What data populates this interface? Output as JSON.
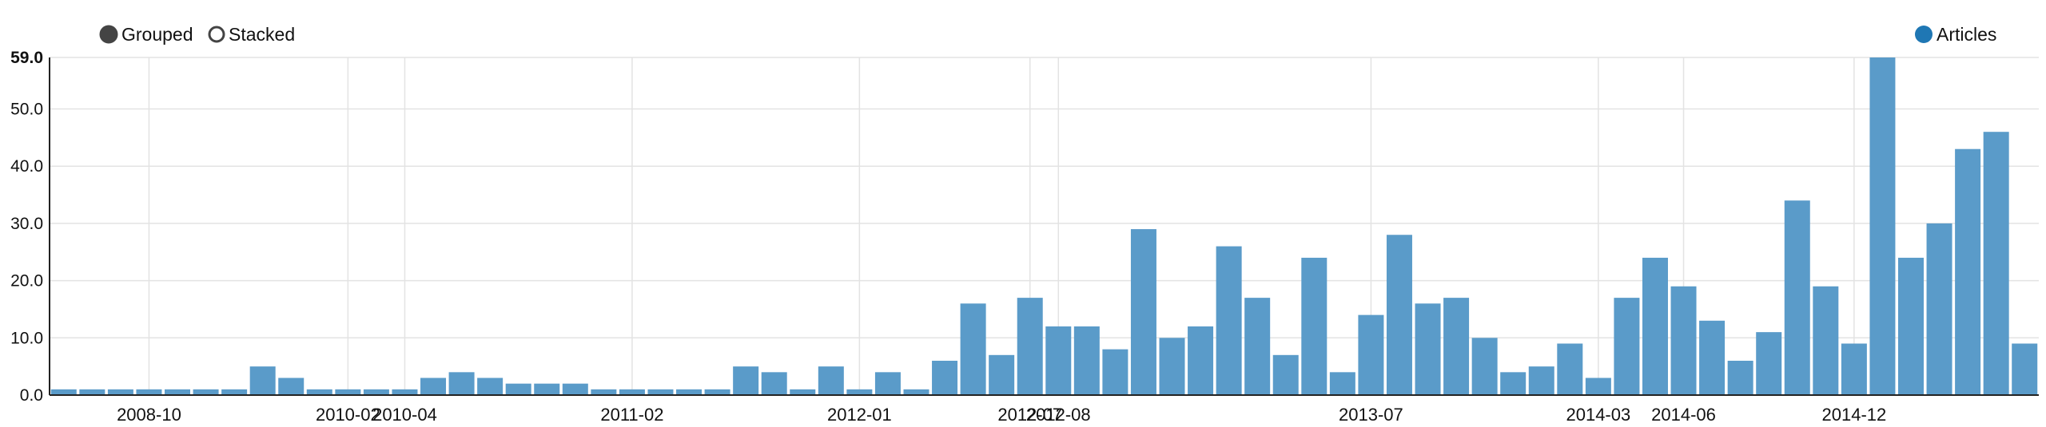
{
  "controls": {
    "grouped_label": "Grouped",
    "stacked_label": "Stacked",
    "selected": "grouped"
  },
  "legend": {
    "items": [
      {
        "label": "Articles",
        "color": "#1f77b4"
      }
    ]
  },
  "chart_data": {
    "type": "bar",
    "title": "",
    "xlabel": "",
    "ylabel": "",
    "ylim": [
      0,
      59
    ],
    "y_ticks": [
      "0.0",
      "10.0",
      "20.0",
      "30.0",
      "40.0",
      "50.0",
      "59.0"
    ],
    "x_tick_labels": [
      "2008-10",
      "2010-02",
      "2010-04",
      "2011-02",
      "2012-01",
      "2012-07",
      "2012-08",
      "2013-07",
      "2014-03",
      "2014-06",
      "2014-12"
    ],
    "x_tick_bar_index": [
      3,
      10,
      12,
      20,
      28,
      34,
      35,
      46,
      54,
      57,
      63
    ],
    "grid": true,
    "legend_position": "top-right",
    "bar_color": "#5a9bc9",
    "series": [
      {
        "name": "Articles",
        "values": [
          1,
          1,
          1,
          1,
          1,
          1,
          1,
          5,
          3,
          1,
          1,
          1,
          1,
          3,
          4,
          3,
          2,
          2,
          2,
          1,
          1,
          1,
          1,
          1,
          5,
          4,
          1,
          5,
          1,
          4,
          1,
          6,
          16,
          7,
          17,
          12,
          12,
          8,
          29,
          10,
          12,
          26,
          17,
          7,
          24,
          4,
          14,
          28,
          16,
          17,
          10,
          4,
          5,
          9,
          3,
          17,
          24,
          19,
          13,
          6,
          11,
          34,
          19,
          9,
          59,
          24,
          30,
          43,
          46,
          9
        ]
      }
    ]
  }
}
